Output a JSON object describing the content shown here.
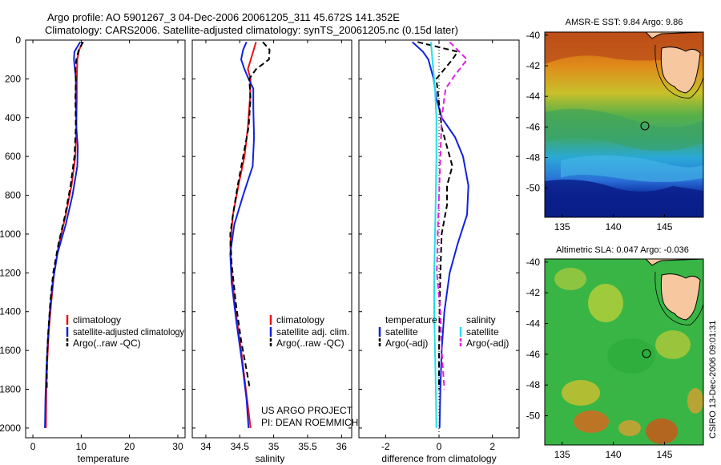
{
  "title_line1": "Argo profile: AO 5901267_3 04-Dec-2006 20061205_311 45.672S 141.352E",
  "title_line2": "Climatology: CARS2006. Satellite-adjusted climatology: synTS_20061205.nc (0.15d later)",
  "colors": {
    "climatology": "#ee1111",
    "satellite": "#1122dd",
    "argo": "#000000",
    "sal_satellite": "#22e0e8",
    "sal_argo": "#e020e0"
  },
  "chart_data": [
    {
      "type": "line",
      "panel": "temperature",
      "xlabel": "temperature",
      "ylabel": "",
      "xlim": [
        -1.5,
        31.5
      ],
      "ylim": [
        2050,
        0
      ],
      "xticks": [
        0,
        10,
        20,
        30
      ],
      "xtick_labels": [
        "0",
        "10",
        "20",
        "30"
      ],
      "yticks": [
        0,
        200,
        400,
        600,
        800,
        1000,
        1200,
        1400,
        1600,
        1800,
        2000
      ],
      "ytick_labels": [
        "0",
        "200",
        "400",
        "600",
        "800",
        "1000",
        "1200",
        "1400",
        "1600",
        "1800",
        "2000"
      ],
      "series": [
        {
          "name": "climatology",
          "style": "solid",
          "color": "#ee1111",
          "points": [
            [
              10.3,
              10
            ],
            [
              9.6,
              50
            ],
            [
              9.2,
              100
            ],
            [
              9.1,
              200
            ],
            [
              9.1,
              300
            ],
            [
              9.0,
              450
            ],
            [
              8.8,
              600
            ],
            [
              8.0,
              750
            ],
            [
              6.8,
              900
            ],
            [
              5.4,
              1050
            ],
            [
              4.4,
              1200
            ],
            [
              3.8,
              1350
            ],
            [
              3.3,
              1500
            ],
            [
              3.0,
              1650
            ],
            [
              2.8,
              1800
            ],
            [
              2.7,
              2000
            ]
          ]
        },
        {
          "name": "satellite-adjusted climatology",
          "style": "solid",
          "color": "#1122dd",
          "points": [
            [
              9.8,
              10
            ],
            [
              8.6,
              60
            ],
            [
              8.5,
              100
            ],
            [
              8.9,
              200
            ],
            [
              8.9,
              300
            ],
            [
              9.0,
              450
            ],
            [
              9.3,
              550
            ],
            [
              9.2,
              650
            ],
            [
              8.2,
              800
            ],
            [
              6.8,
              950
            ],
            [
              5.1,
              1100
            ],
            [
              4.1,
              1250
            ],
            [
              3.5,
              1400
            ],
            [
              3.1,
              1550
            ],
            [
              2.8,
              1700
            ],
            [
              2.6,
              1850
            ],
            [
              2.5,
              2000
            ]
          ]
        },
        {
          "name": "Argo(..raw -QC)",
          "style": "dashed",
          "color": "#000000",
          "points": [
            [
              10.4,
              10
            ],
            [
              9.5,
              50
            ],
            [
              9.0,
              100
            ],
            [
              8.8,
              150
            ],
            [
              8.9,
              200
            ],
            [
              8.8,
              300
            ],
            [
              8.9,
              450
            ],
            [
              8.6,
              600
            ],
            [
              7.8,
              750
            ],
            [
              6.7,
              900
            ],
            [
              5.3,
              1050
            ],
            [
              4.2,
              1200
            ],
            [
              3.6,
              1350
            ],
            [
              3.2,
              1500
            ],
            [
              2.9,
              1650
            ],
            [
              2.9,
              1800
            ]
          ]
        }
      ],
      "legend": [
        "climatology",
        "satellite-adjusted climatology",
        "Argo(..raw -QC)"
      ]
    },
    {
      "type": "line",
      "panel": "salinity",
      "xlabel": "salinity",
      "ylabel": "",
      "xlim": [
        33.8,
        36.15
      ],
      "ylim": [
        2050,
        0
      ],
      "xticks": [
        34,
        34.5,
        35,
        35.5,
        36
      ],
      "xtick_labels": [
        "34",
        "34.5",
        "35",
        "35.5",
        "36"
      ],
      "series": [
        {
          "name": "climatology",
          "style": "solid",
          "color": "#ee1111",
          "points": [
            [
              34.74,
              10
            ],
            [
              34.68,
              80
            ],
            [
              34.62,
              150
            ],
            [
              34.66,
              200
            ],
            [
              34.65,
              300
            ],
            [
              34.62,
              450
            ],
            [
              34.57,
              600
            ],
            [
              34.48,
              750
            ],
            [
              34.4,
              900
            ],
            [
              34.36,
              1050
            ],
            [
              34.38,
              1200
            ],
            [
              34.44,
              1400
            ],
            [
              34.52,
              1600
            ],
            [
              34.59,
              1800
            ],
            [
              34.66,
              2000
            ]
          ]
        },
        {
          "name": "satellite adj. clim.",
          "style": "solid",
          "color": "#1122dd",
          "points": [
            [
              34.6,
              10
            ],
            [
              34.55,
              50
            ],
            [
              34.52,
              100
            ],
            [
              34.57,
              150
            ],
            [
              34.63,
              200
            ],
            [
              34.7,
              250
            ],
            [
              34.7,
              350
            ],
            [
              34.71,
              500
            ],
            [
              34.69,
              650
            ],
            [
              34.55,
              800
            ],
            [
              34.42,
              950
            ],
            [
              34.36,
              1100
            ],
            [
              34.38,
              1250
            ],
            [
              34.45,
              1450
            ],
            [
              34.53,
              1650
            ],
            [
              34.6,
              1850
            ],
            [
              34.63,
              2000
            ]
          ]
        },
        {
          "name": "Argo(..raw -QC)",
          "style": "dashed",
          "color": "#000000",
          "points": [
            [
              34.84,
              10
            ],
            [
              34.94,
              50
            ],
            [
              34.93,
              100
            ],
            [
              34.74,
              150
            ],
            [
              34.64,
              200
            ],
            [
              34.66,
              300
            ],
            [
              34.63,
              450
            ],
            [
              34.55,
              600
            ],
            [
              34.47,
              750
            ],
            [
              34.4,
              900
            ],
            [
              34.36,
              1000
            ],
            [
              34.38,
              1150
            ],
            [
              34.44,
              1350
            ],
            [
              34.52,
              1550
            ],
            [
              34.6,
              1700
            ],
            [
              34.65,
              1800
            ]
          ]
        }
      ],
      "legend": [
        "climatology",
        "satellite adj. clim.",
        "Argo(..raw -QC)"
      ],
      "annotation_line1": "US ARGO PROJECT",
      "annotation_line2": "PI: DEAN ROEMMICH"
    },
    {
      "type": "line",
      "panel": "difference",
      "xlabel": "difference from climatology",
      "ylabel": "",
      "xlim": [
        -3,
        3
      ],
      "ylim": [
        2050,
        0
      ],
      "xticks": [
        -2,
        0,
        2
      ],
      "xtick_labels": [
        "-2",
        "0",
        "2"
      ],
      "series": [
        {
          "name": "temperature satellite",
          "style": "solid",
          "color": "#1122dd",
          "points": [
            [
              -1.0,
              10
            ],
            [
              -0.6,
              60
            ],
            [
              -0.4,
              100
            ],
            [
              -0.2,
              200
            ],
            [
              -0.1,
              300
            ],
            [
              0.1,
              400
            ],
            [
              0.6,
              500
            ],
            [
              0.9,
              600
            ],
            [
              1.1,
              750
            ],
            [
              1.05,
              900
            ],
            [
              0.7,
              1050
            ],
            [
              0.4,
              1200
            ],
            [
              0.2,
              1400
            ],
            [
              0.1,
              1600
            ],
            [
              0.05,
              1800
            ],
            [
              0.02,
              2000
            ]
          ]
        },
        {
          "name": "temperature Argo(-adj)",
          "style": "dashed",
          "color": "#000000",
          "points": [
            [
              -0.8,
              10
            ],
            [
              0.7,
              60
            ],
            [
              0.5,
              100
            ],
            [
              -0.1,
              200
            ],
            [
              0.1,
              450
            ],
            [
              0.5,
              650
            ],
            [
              0.3,
              750
            ],
            [
              0.3,
              850
            ],
            [
              0.1,
              1000
            ],
            [
              0.05,
              1200
            ],
            [
              0.02,
              1400
            ],
            [
              0.0,
              1600
            ],
            [
              0.0,
              1800
            ]
          ]
        },
        {
          "name": "salinity satellite",
          "style": "solid",
          "color": "#22e0e8",
          "points": [
            [
              -0.3,
              10
            ],
            [
              -0.25,
              100
            ],
            [
              -0.15,
              250
            ],
            [
              -0.1,
              400
            ],
            [
              -0.1,
              600
            ],
            [
              -0.12,
              800
            ],
            [
              -0.15,
              1000
            ],
            [
              -0.18,
              1200
            ],
            [
              -0.18,
              1400
            ],
            [
              -0.15,
              1600
            ],
            [
              -0.12,
              1800
            ],
            [
              -0.1,
              2000
            ]
          ]
        },
        {
          "name": "salinity Argo(-adj)",
          "style": "dashed",
          "color": "#e020e0",
          "points": [
            [
              0.4,
              10
            ],
            [
              1.05,
              100
            ],
            [
              0.6,
              180
            ],
            [
              0.25,
              250
            ],
            [
              0.1,
              400
            ],
            [
              0.05,
              600
            ],
            [
              0.0,
              800
            ],
            [
              -0.05,
              1000
            ],
            [
              -0.08,
              1200
            ],
            [
              0.05,
              1400
            ],
            [
              0.1,
              1600
            ],
            [
              0.2,
              1800
            ]
          ]
        }
      ],
      "legend_headers": [
        "temperature",
        "salinity"
      ],
      "legend": [
        "satellite",
        "Argo(-adj)",
        "satellite",
        "Argo(-adj)"
      ]
    },
    {
      "type": "heatmap",
      "panel": "sst-map",
      "title": "AMSR-E SST: 9.84  Argo: 9.86",
      "xlim": [
        133.3,
        148.8
      ],
      "ylim": [
        -51.9,
        -39.8
      ],
      "xticks": [
        135,
        140,
        145
      ],
      "xtick_labels": [
        "135",
        "140",
        "145"
      ],
      "yticks": [
        -40,
        -42,
        -44,
        -46,
        -48,
        -50
      ],
      "ytick_labels": [
        "-40",
        "-42",
        "-44",
        "-46",
        "-48",
        "-50"
      ],
      "float_position": [
        141.35,
        -45.67
      ]
    },
    {
      "type": "heatmap",
      "panel": "sla-map",
      "title": "Altimetric SLA: 0.047  Argo: -0.036",
      "xlim": [
        133.3,
        148.8
      ],
      "ylim": [
        -51.9,
        -39.8
      ],
      "xticks": [
        135,
        140,
        145
      ],
      "xtick_labels": [
        "135",
        "140",
        "145"
      ],
      "yticks": [
        -40,
        -42,
        -44,
        -46,
        -48,
        -50
      ],
      "ytick_labels": [
        "-40",
        "-42",
        "-44",
        "-46",
        "-48",
        "-50"
      ],
      "float_position": [
        141.35,
        -45.67
      ]
    }
  ],
  "stamp": "CSIRO 13-Dec-2006 09:01:31"
}
